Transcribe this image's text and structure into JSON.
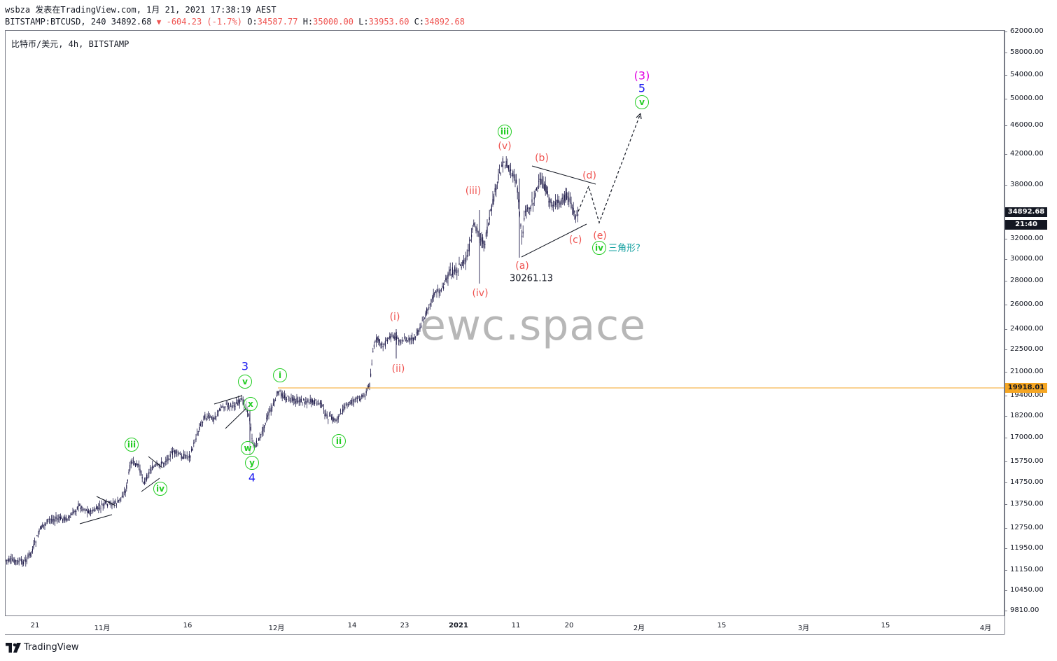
{
  "header": {
    "author_line": "wsbza 发表在TradingView.com, 1月 21, 2021 17:38:19 AEST",
    "symbol_prefix": "BITSTAMP:BTCUSD, 240 34892.68",
    "change_arrow": "▼",
    "change": "-604.23 (-1.7%)",
    "o_label": "O:",
    "o_value": "34587.77",
    "h_label": "H:",
    "h_value": "35000.00",
    "l_label": "L:",
    "l_value": "33953.60",
    "c_label": "C:",
    "c_value": "34892.68"
  },
  "legend": "比特币/美元, 4h, BITSTAMP",
  "watermark": "ewc.space",
  "footer": {
    "brand": "TradingView"
  },
  "colors": {
    "candle": "#1e1a4a",
    "hline": "#f5a623",
    "price_badge": "#131722",
    "level_badge": "#f5a623",
    "wave_green": "#22cc22",
    "wave_red": "#ef5350",
    "wave_blue": "#1a1af0",
    "wave_magenta": "#e000e0"
  },
  "y_axis": {
    "ticks": [
      "62000.00",
      "58000.00",
      "54000.00",
      "50000.00",
      "46000.00",
      "42000.00",
      "38000.00",
      "32000.00",
      "30000.00",
      "28000.00",
      "26000.00",
      "24000.00",
      "22500.00",
      "21000.00",
      "19400.00",
      "18200.00",
      "17000.00",
      "15750.00",
      "14750.00",
      "13750.00",
      "12750.00",
      "11950.00",
      "11150.00",
      "10450.00",
      "9810.00"
    ],
    "current_price": "34892.68",
    "countdown": "21:40",
    "level_price": "19918.01"
  },
  "x_axis": {
    "ticks": [
      {
        "label": "21",
        "bold": false
      },
      {
        "label": "11月",
        "bold": false
      },
      {
        "label": "16",
        "bold": false
      },
      {
        "label": "12月",
        "bold": false
      },
      {
        "label": "14",
        "bold": false
      },
      {
        "label": "23",
        "bold": false
      },
      {
        "label": "2021",
        "bold": true
      },
      {
        "label": "11",
        "bold": false
      },
      {
        "label": "20",
        "bold": false
      },
      {
        "label": "2月",
        "bold": false
      },
      {
        "label": "15",
        "bold": false
      },
      {
        "label": "3月",
        "bold": false
      },
      {
        "label": "15",
        "bold": false
      },
      {
        "label": "4月",
        "bold": false
      }
    ]
  },
  "annotations": {
    "circled": [
      "iii",
      "iv",
      "v",
      "x",
      "w",
      "y",
      "i",
      "ii",
      "iii",
      "iv",
      "v"
    ],
    "red": [
      "(i)",
      "(ii)",
      "(iii)",
      "(iv)",
      "(v)",
      "(a)",
      "(b)",
      "(c)",
      "(d)",
      "(e)"
    ],
    "blue": [
      "3",
      "4",
      "5"
    ],
    "magenta": [
      "(3)"
    ],
    "low_value": "30261.13",
    "triangle_note": "三角形?"
  }
}
